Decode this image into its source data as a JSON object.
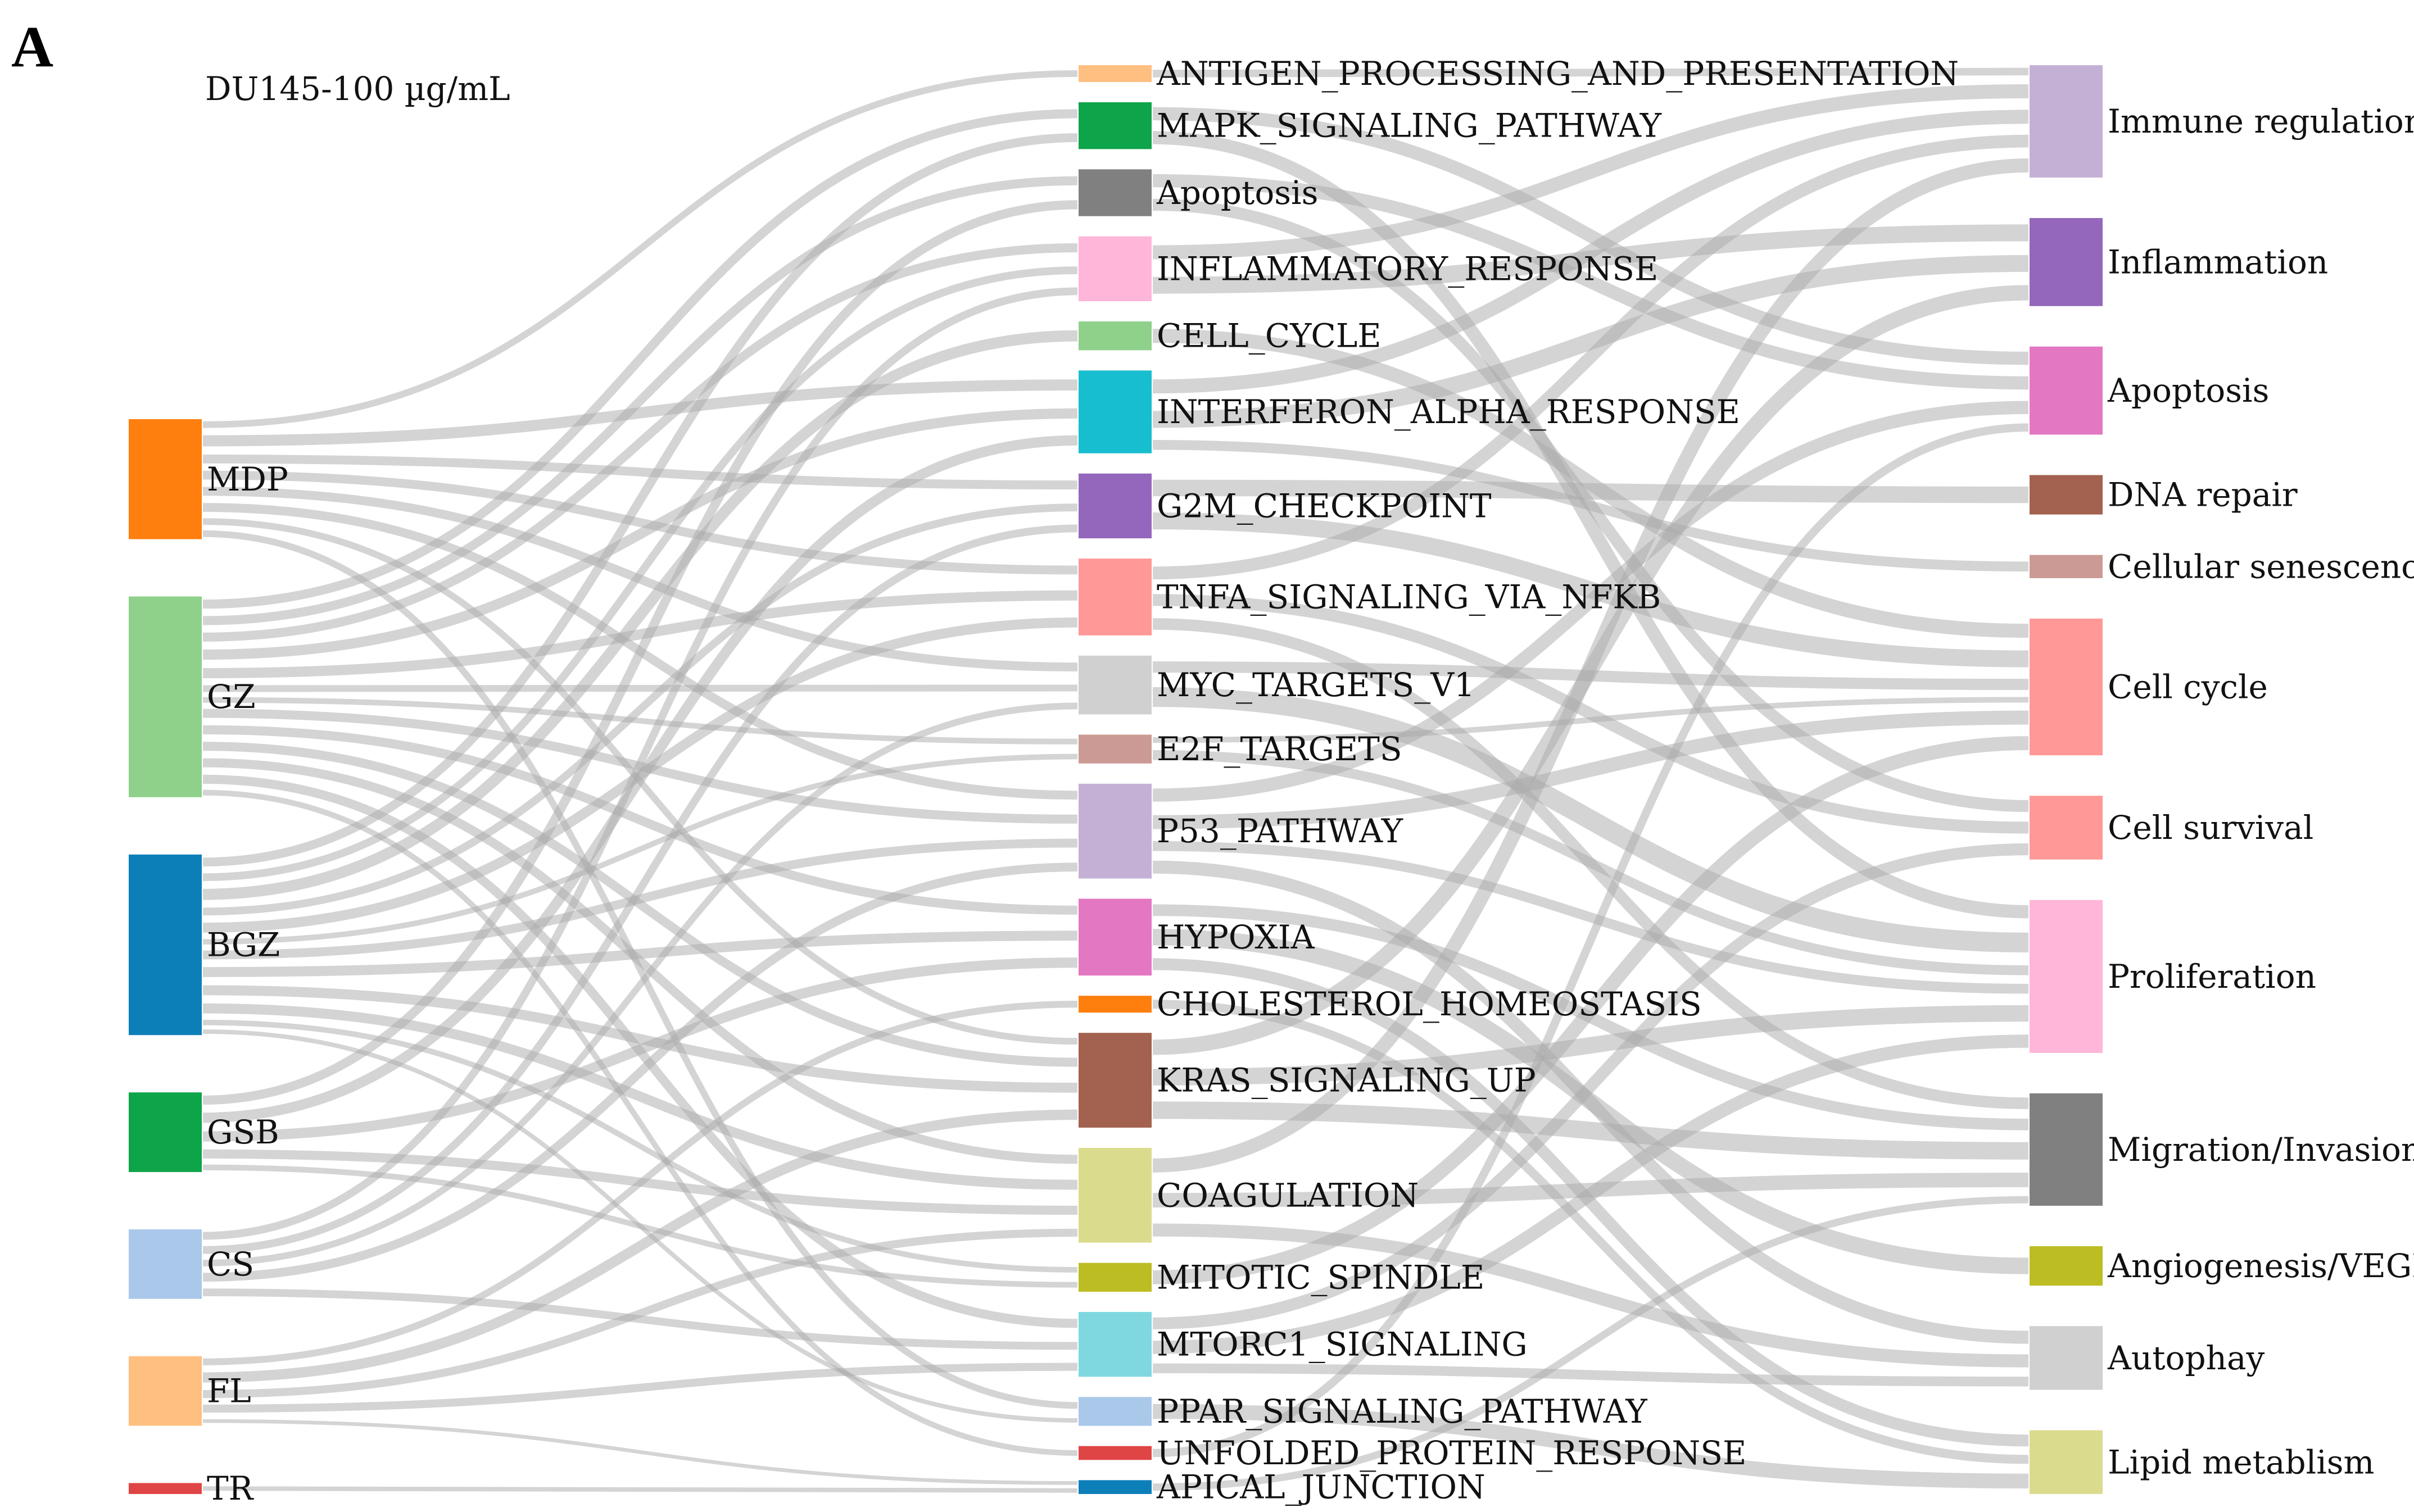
{
  "panel_letter": "A",
  "subtitle": "DU145-100 µg/mL",
  "chart_data": {
    "type": "sankey",
    "title": "",
    "columns": [
      {
        "name": "",
        "nodes": [
          {
            "id": "MDP",
            "label": "MDP",
            "color": "#ff7f0e",
            "value": 6
          },
          {
            "id": "GZ",
            "label": "GZ",
            "color": "#8fd18b",
            "value": 10
          },
          {
            "id": "BGZ",
            "label": "BGZ",
            "color": "#0d7fb8",
            "value": 9
          },
          {
            "id": "GSB",
            "label": "GSB",
            "color": "#0ea44a",
            "value": 4
          },
          {
            "id": "CS",
            "label": "CS",
            "color": "#aac8ea",
            "value": 3.5
          },
          {
            "id": "FL",
            "label": "FL",
            "color": "#ffbf80",
            "value": 3.5
          },
          {
            "id": "TR",
            "label": "TR",
            "color": "#e04545",
            "value": 0.6
          }
        ]
      },
      {
        "name": "",
        "nodes": [
          {
            "id": "ANTIGEN",
            "label": "ANTIGEN_PROCESSING_AND_PRESENTATION",
            "color": "#ffbf80",
            "value": 0.6
          },
          {
            "id": "MAPK",
            "label": "MAPK_SIGNALING_PATHWAY",
            "color": "#0ea44a",
            "value": 1.6
          },
          {
            "id": "APOP_H",
            "label": "Apoptosis",
            "color": "#808080",
            "value": 1.6
          },
          {
            "id": "INFLAM",
            "label": "INFLAMMATORY_RESPONSE",
            "color": "#ffb6d9",
            "value": 2.2
          },
          {
            "id": "CELLCYC",
            "label": "CELL_CYCLE",
            "color": "#8fd18b",
            "value": 1
          },
          {
            "id": "IFNA",
            "label": "INTERFERON_ALPHA_RESPONSE",
            "color": "#17becf",
            "value": 2.8
          },
          {
            "id": "G2M",
            "label": "G2M_CHECKPOINT",
            "color": "#9467bd",
            "value": 2.2
          },
          {
            "id": "TNFA",
            "label": "TNFA_SIGNALING_VIA_NFKB",
            "color": "#ff9896",
            "value": 2.6
          },
          {
            "id": "MYC",
            "label": "MYC_TARGETS_V1",
            "color": "#d0d0d0",
            "value": 2
          },
          {
            "id": "E2F",
            "label": "E2F_TARGETS",
            "color": "#cc9a94",
            "value": 1
          },
          {
            "id": "P53",
            "label": "P53_PATHWAY",
            "color": "#c5b0d5",
            "value": 3.2
          },
          {
            "id": "HYPOXIA",
            "label": "HYPOXIA",
            "color": "#e377c2",
            "value": 2.6
          },
          {
            "id": "CHOL",
            "label": "CHOLESTEROL_HOMEOSTASIS",
            "color": "#ff7f0e",
            "value": 0.6
          },
          {
            "id": "KRAS",
            "label": "KRAS_SIGNALING_UP",
            "color": "#a3614f",
            "value": 3.2
          },
          {
            "id": "COAG",
            "label": "COAGULATION",
            "color": "#dbdb8d",
            "value": 3.2
          },
          {
            "id": "MITOTIC",
            "label": "MITOTIC_SPINDLE",
            "color": "#bcbd22",
            "value": 1
          },
          {
            "id": "MTORC1",
            "label": "MTORC1_SIGNALING",
            "color": "#7fd8e0",
            "value": 2.2
          },
          {
            "id": "PPAR",
            "label": "PPAR_SIGNALING_PATHWAY",
            "color": "#aac8ea",
            "value": 1
          },
          {
            "id": "UPR",
            "label": "UNFOLDED_PROTEIN_RESPONSE",
            "color": "#e04545",
            "value": 0.5
          },
          {
            "id": "APICAL",
            "label": "APICAL_JUNCTION",
            "color": "#0d7fb8",
            "value": 0.5
          }
        ]
      },
      {
        "name": "",
        "nodes": [
          {
            "id": "IMMUNE",
            "label": "Immune regulation",
            "color": "#c5b0d5",
            "value": 2.8
          },
          {
            "id": "INFL2",
            "label": "Inflammation",
            "color": "#9467bd",
            "value": 2.2
          },
          {
            "id": "APOP2",
            "label": "Apoptosis",
            "color": "#e377c2",
            "value": 2.2
          },
          {
            "id": "DNAREP",
            "label": "DNA repair",
            "color": "#a3614f",
            "value": 1
          },
          {
            "id": "SENES",
            "label": "Cellular senescence",
            "color": "#cc9a94",
            "value": 0.6
          },
          {
            "id": "CELLCYC2",
            "label": "Cell cycle",
            "color": "#ff9896",
            "value": 3.4
          },
          {
            "id": "SURVIVAL",
            "label": "Cell survival",
            "color": "#ff9896",
            "value": 1.6
          },
          {
            "id": "PROLIF",
            "label": "Proliferation",
            "color": "#ffb6d9",
            "value": 3.8
          },
          {
            "id": "MIGR",
            "label": "Migration/Invasion",
            "color": "#808080",
            "value": 2.8
          },
          {
            "id": "ANGIO",
            "label": "Angiogenesis/VEGF",
            "color": "#bcbd22",
            "value": 1
          },
          {
            "id": "AUTO",
            "label": "Autophay",
            "color": "#d0d0d0",
            "value": 1.6
          },
          {
            "id": "LIPID",
            "label": "Lipid metablism",
            "color": "#dbdb8d",
            "value": 1.6
          }
        ]
      }
    ],
    "links": [
      {
        "source": "MDP",
        "target": "ANTIGEN",
        "value": 0.6
      },
      {
        "source": "MDP",
        "target": "IFNA",
        "value": 1
      },
      {
        "source": "MDP",
        "target": "G2M",
        "value": 0.8
      },
      {
        "source": "MDP",
        "target": "TNFA",
        "value": 0.8
      },
      {
        "source": "MDP",
        "target": "MYC",
        "value": 0.8
      },
      {
        "source": "MDP",
        "target": "P53",
        "value": 0.8
      },
      {
        "source": "MDP",
        "target": "KRAS",
        "value": 0.6
      },
      {
        "source": "MDP",
        "target": "PPAR",
        "value": 0.6
      },
      {
        "source": "GZ",
        "target": "MAPK",
        "value": 0.8
      },
      {
        "source": "GZ",
        "target": "APOP_H",
        "value": 0.8
      },
      {
        "source": "GZ",
        "target": "INFLAM",
        "value": 0.8
      },
      {
        "source": "GZ",
        "target": "IFNA",
        "value": 0.9
      },
      {
        "source": "GZ",
        "target": "TNFA",
        "value": 0.9
      },
      {
        "source": "GZ",
        "target": "MYC",
        "value": 0.6
      },
      {
        "source": "GZ",
        "target": "E2F",
        "value": 0.5
      },
      {
        "source": "GZ",
        "target": "P53",
        "value": 0.8
      },
      {
        "source": "GZ",
        "target": "HYPOXIA",
        "value": 0.8
      },
      {
        "source": "GZ",
        "target": "KRAS",
        "value": 0.8
      },
      {
        "source": "GZ",
        "target": "COAG",
        "value": 0.8
      },
      {
        "source": "GZ",
        "target": "MTORC1",
        "value": 0.8
      },
      {
        "source": "GZ",
        "target": "UPR",
        "value": 0.5
      },
      {
        "source": "BGZ",
        "target": "MAPK",
        "value": 0.8
      },
      {
        "source": "BGZ",
        "target": "INFLAM",
        "value": 0.7
      },
      {
        "source": "BGZ",
        "target": "CELLCYC",
        "value": 1
      },
      {
        "source": "BGZ",
        "target": "G2M",
        "value": 0.7
      },
      {
        "source": "BGZ",
        "target": "TNFA",
        "value": 0.9
      },
      {
        "source": "BGZ",
        "target": "E2F",
        "value": 0.5
      },
      {
        "source": "BGZ",
        "target": "P53",
        "value": 0.8
      },
      {
        "source": "BGZ",
        "target": "HYPOXIA",
        "value": 0.9
      },
      {
        "source": "BGZ",
        "target": "KRAS",
        "value": 0.9
      },
      {
        "source": "BGZ",
        "target": "COAG",
        "value": 0.9
      },
      {
        "source": "BGZ",
        "target": "MITOTIC",
        "value": 0.5
      },
      {
        "source": "BGZ",
        "target": "PPAR",
        "value": 0.4
      },
      {
        "source": "GSB",
        "target": "APOP_H",
        "value": 0.8
      },
      {
        "source": "GSB",
        "target": "IFNA",
        "value": 0.9
      },
      {
        "source": "GSB",
        "target": "HYPOXIA",
        "value": 0.9
      },
      {
        "source": "GSB",
        "target": "COAG",
        "value": 0.8
      },
      {
        "source": "GSB",
        "target": "MITOTIC",
        "value": 0.5
      },
      {
        "source": "CS",
        "target": "INFLAM",
        "value": 0.7
      },
      {
        "source": "CS",
        "target": "G2M",
        "value": 0.7
      },
      {
        "source": "CS",
        "target": "MYC",
        "value": 0.6
      },
      {
        "source": "CS",
        "target": "P53",
        "value": 0.8
      },
      {
        "source": "CS",
        "target": "MTORC1",
        "value": 0.7
      },
      {
        "source": "FL",
        "target": "KRAS",
        "value": 0.9
      },
      {
        "source": "FL",
        "target": "COAG",
        "value": 0.7
      },
      {
        "source": "FL",
        "target": "CHOL",
        "value": 0.6
      },
      {
        "source": "FL",
        "target": "MTORC1",
        "value": 0.7
      },
      {
        "source": "FL",
        "target": "APICAL",
        "value": 0.5
      },
      {
        "source": "TR",
        "target": "APICAL",
        "value": 0.6
      },
      {
        "source": "ANTIGEN",
        "target": "IMMUNE",
        "value": 0.6
      },
      {
        "source": "MAPK",
        "target": "APOP2",
        "value": 0.8
      },
      {
        "source": "MAPK",
        "target": "PROLIF",
        "value": 0.8
      },
      {
        "source": "APOP_H",
        "target": "APOP2",
        "value": 0.8
      },
      {
        "source": "APOP_H",
        "target": "SURVIVAL",
        "value": 0.8
      },
      {
        "source": "INFLAM",
        "target": "IMMUNE",
        "value": 1.1
      },
      {
        "source": "INFLAM",
        "target": "INFL2",
        "value": 1.1
      },
      {
        "source": "CELLCYC",
        "target": "CELLCYC2",
        "value": 1
      },
      {
        "source": "IFNA",
        "target": "IMMUNE",
        "value": 1.1
      },
      {
        "source": "IFNA",
        "target": "INFL2",
        "value": 1.1
      },
      {
        "source": "IFNA",
        "target": "SENES",
        "value": 0.6
      },
      {
        "source": "G2M",
        "target": "CELLCYC2",
        "value": 1.2
      },
      {
        "source": "G2M",
        "target": "DNAREP",
        "value": 1
      },
      {
        "source": "TNFA",
        "target": "IMMUNE",
        "value": 1
      },
      {
        "source": "TNFA",
        "target": "SURVIVAL",
        "value": 0.8
      },
      {
        "source": "TNFA",
        "target": "MIGR",
        "value": 0.8
      },
      {
        "source": "MYC",
        "target": "PROLIF",
        "value": 1.2
      },
      {
        "source": "MYC",
        "target": "CELLCYC2",
        "value": 0.8
      },
      {
        "source": "E2F",
        "target": "CELLCYC2",
        "value": 0.4
      },
      {
        "source": "E2F",
        "target": "PROLIF",
        "value": 0.6
      },
      {
        "source": "P53",
        "target": "APOP2",
        "value": 0.8
      },
      {
        "source": "P53",
        "target": "CELLCYC2",
        "value": 1
      },
      {
        "source": "P53",
        "target": "AUTO",
        "value": 0.8
      },
      {
        "source": "P53",
        "target": "PROLIF",
        "value": 0.6
      },
      {
        "source": "HYPOXIA",
        "target": "ANGIO",
        "value": 1
      },
      {
        "source": "HYPOXIA",
        "target": "MIGR",
        "value": 0.8
      },
      {
        "source": "HYPOXIA",
        "target": "LIPID",
        "value": 0.8
      },
      {
        "source": "CHOL",
        "target": "LIPID",
        "value": 0.6
      },
      {
        "source": "KRAS",
        "target": "MIGR",
        "value": 1.2
      },
      {
        "source": "KRAS",
        "target": "PROLIF",
        "value": 1
      },
      {
        "source": "KRAS",
        "target": "INFL2",
        "value": 1
      },
      {
        "source": "COAG",
        "target": "MIGR",
        "value": 1
      },
      {
        "source": "COAG",
        "target": "IMMUNE",
        "value": 1.1
      },
      {
        "source": "COAG",
        "target": "AUTO",
        "value": 0.8
      },
      {
        "source": "MITOTIC",
        "target": "CELLCYC2",
        "value": 1
      },
      {
        "source": "MTORC1",
        "target": "PROLIF",
        "value": 0.8
      },
      {
        "source": "MTORC1",
        "target": "SURVIVAL",
        "value": 0.8
      },
      {
        "source": "MTORC1",
        "target": "AUTO",
        "value": 0.6
      },
      {
        "source": "PPAR",
        "target": "LIPID",
        "value": 1
      },
      {
        "source": "UPR",
        "target": "APOP2",
        "value": 0.5
      },
      {
        "source": "APICAL",
        "target": "MIGR",
        "value": 0.5
      }
    ]
  }
}
